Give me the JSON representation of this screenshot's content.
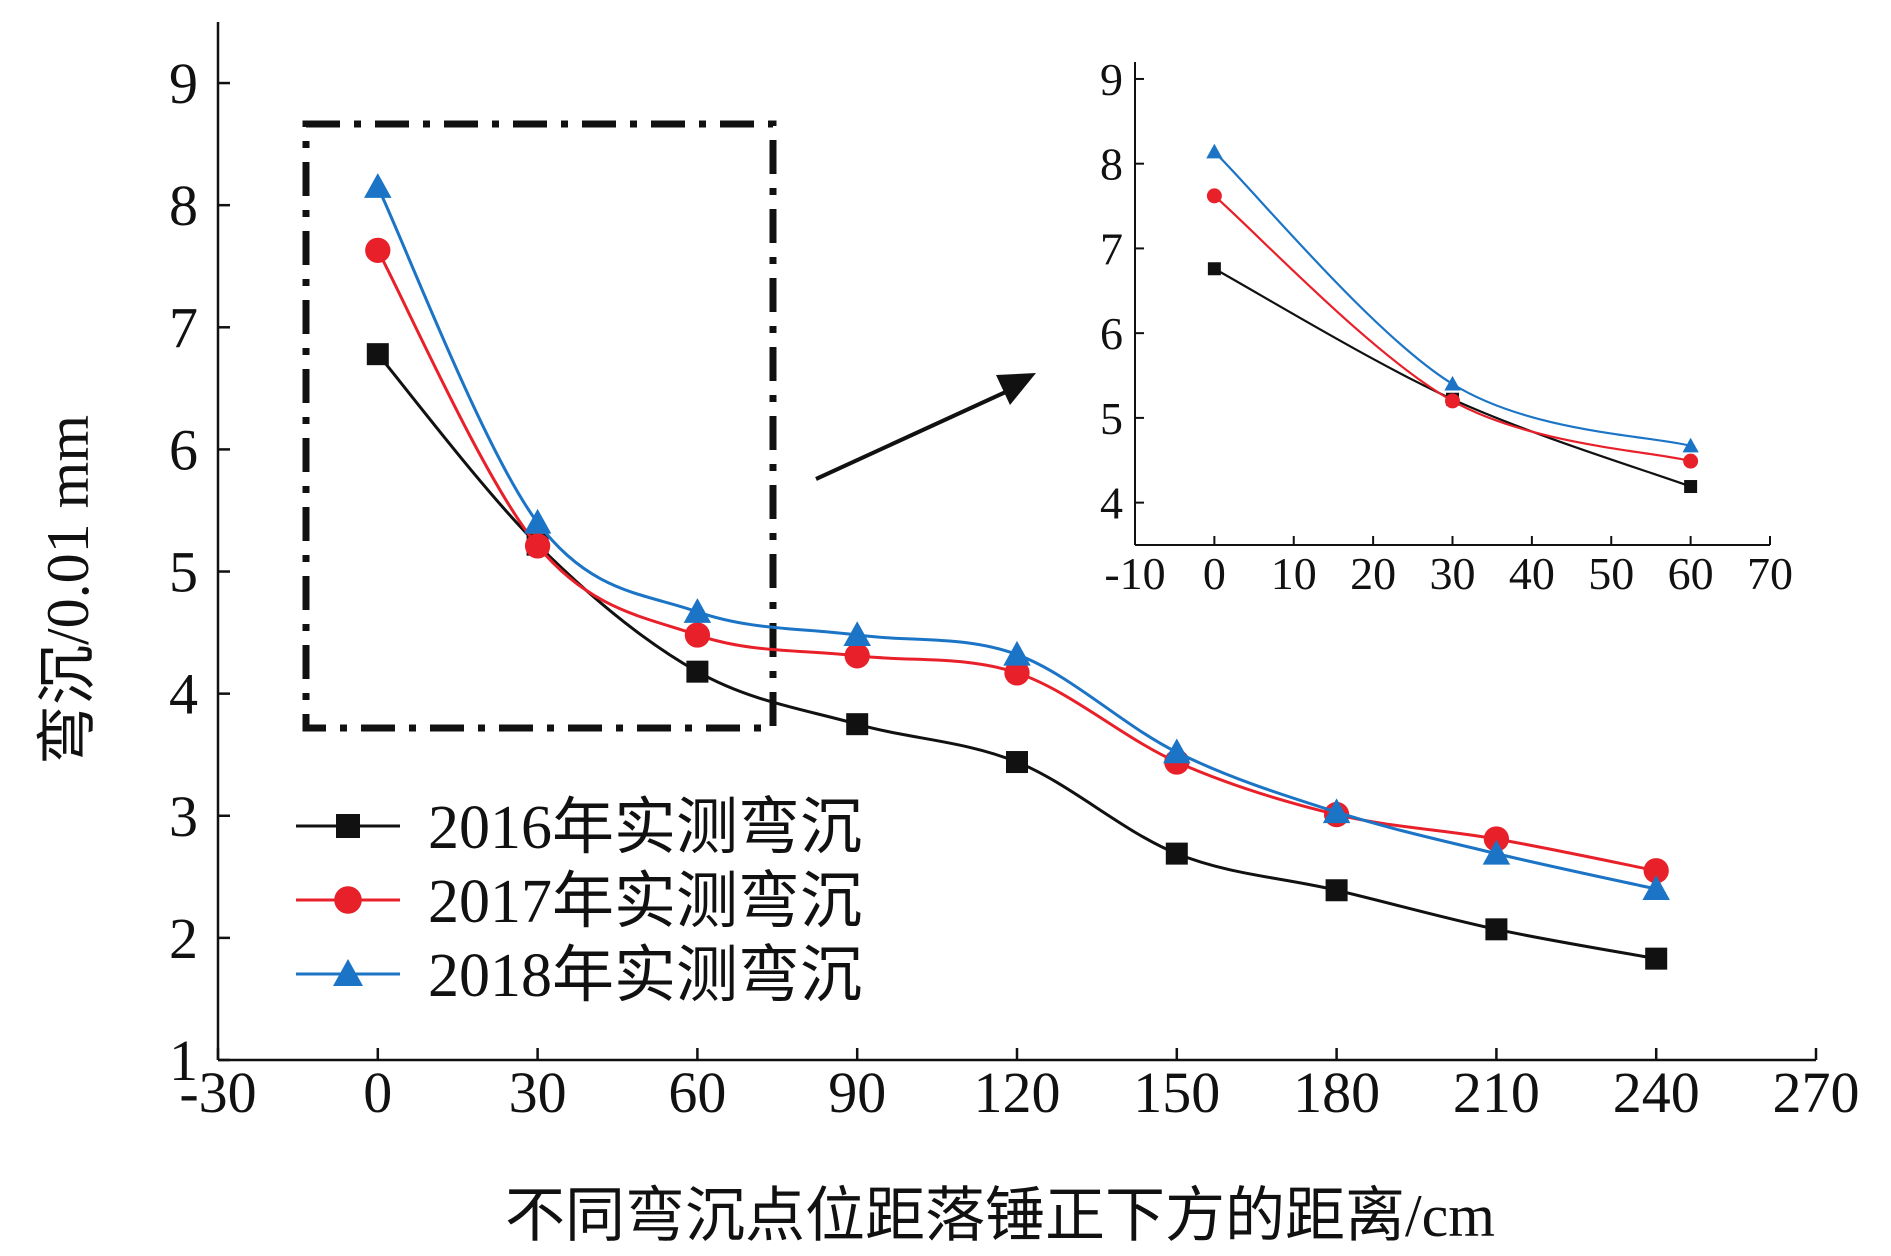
{
  "chart_data": [
    {
      "type": "line",
      "title": "",
      "xlabel": "不同弯沉点位距落锤正下方的距离/cm",
      "ylabel": "弯沉/0.01 mm",
      "xlim": [
        -30,
        270
      ],
      "ylim": [
        1,
        9.5
      ],
      "xticks": [
        "-30",
        "0",
        "30",
        "60",
        "90",
        "120",
        "150",
        "180",
        "210",
        "240",
        "270"
      ],
      "yticks": [
        "1",
        "2",
        "3",
        "4",
        "5",
        "6",
        "7",
        "8",
        "9"
      ],
      "x": [
        0,
        30,
        60,
        90,
        120,
        150,
        180,
        210,
        240
      ],
      "legend_position": "lower-left",
      "series": [
        {
          "name": "2016年实测弯沉",
          "color": "#111111",
          "marker": "square",
          "values": [
            6.78,
            5.22,
            4.18,
            3.75,
            3.44,
            2.69,
            2.39,
            2.07,
            1.83
          ]
        },
        {
          "name": "2017年实测弯沉",
          "color": "#e8202a",
          "marker": "circle",
          "values": [
            7.63,
            5.21,
            4.48,
            4.31,
            4.17,
            3.44,
            3.01,
            2.81,
            2.55
          ]
        },
        {
          "name": "2018年实测弯沉",
          "color": "#1b74c5",
          "marker": "triangle",
          "values": [
            8.15,
            5.4,
            4.67,
            4.48,
            4.32,
            3.52,
            3.03,
            2.69,
            2.4
          ]
        }
      ]
    },
    {
      "type": "line",
      "title": "",
      "xlabel": "",
      "ylabel": "",
      "xlim": [
        -10,
        70
      ],
      "ylim": [
        3.5,
        9.2
      ],
      "xticks": [
        "-10",
        "0",
        "10",
        "20",
        "30",
        "40",
        "50",
        "60",
        "70"
      ],
      "yticks": [
        "4",
        "5",
        "6",
        "7",
        "8",
        "9"
      ],
      "x": [
        0,
        30,
        60
      ],
      "series": [
        {
          "color": "#111111",
          "marker": "square",
          "values": [
            6.76,
            5.22,
            4.19
          ]
        },
        {
          "color": "#e8202a",
          "marker": "circle",
          "values": [
            7.62,
            5.2,
            4.49
          ]
        },
        {
          "color": "#1b74c5",
          "marker": "triangle",
          "values": [
            8.14,
            5.4,
            4.67
          ]
        }
      ]
    }
  ]
}
